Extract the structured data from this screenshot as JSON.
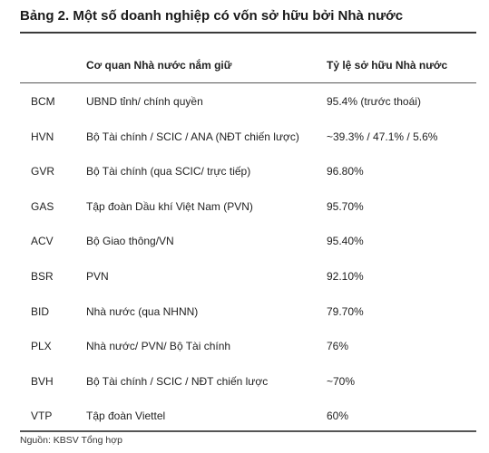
{
  "title": "Bảng 2. Một số doanh nghiệp có vốn sở hữu bởi Nhà nước",
  "headers": {
    "ticker": "",
    "agency": "Cơ quan Nhà nước nắm giữ",
    "ratio": "Tỷ lệ sở hữu Nhà nước"
  },
  "rows": [
    {
      "ticker": "BCM",
      "agency": "UBND tỉnh/ chính quyền",
      "ratio": "95.4% (trước thoái)"
    },
    {
      "ticker": "HVN",
      "agency": "Bộ Tài chính / SCIC / ANA (NĐT chiến lược)",
      "ratio": "~39.3% / 47.1% / 5.6%"
    },
    {
      "ticker": "GVR",
      "agency": "Bộ Tài chính (qua SCIC/ trực tiếp)",
      "ratio": "96.80%"
    },
    {
      "ticker": "GAS",
      "agency": "Tập đoàn Dầu khí Việt Nam (PVN)",
      "ratio": "95.70%"
    },
    {
      "ticker": "ACV",
      "agency": "Bộ Giao thông/VN",
      "ratio": "95.40%"
    },
    {
      "ticker": "BSR",
      "agency": "PVN",
      "ratio": "92.10%"
    },
    {
      "ticker": "BID",
      "agency": "Nhà nước (qua NHNN)",
      "ratio": "79.70%"
    },
    {
      "ticker": "PLX",
      "agency": "Nhà nước/ PVN/ Bộ Tài chính",
      "ratio": "76%"
    },
    {
      "ticker": "BVH",
      "agency": "Bộ Tài chính / SCIC / NĐT chiến lược",
      "ratio": "~70%"
    },
    {
      "ticker": "VTP",
      "agency": "Tập đoàn Viettel",
      "ratio": "60%"
    }
  ],
  "source": "Nguồn: KBSV Tổng hợp"
}
